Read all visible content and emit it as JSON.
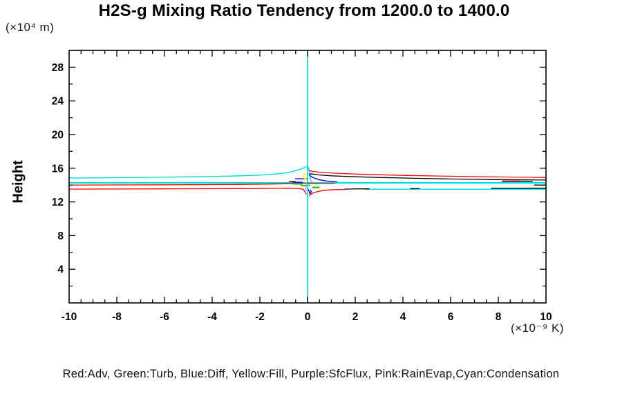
{
  "title": "H2S-g Mixing Ratio Tendency from 1200.0 to 1400.0",
  "y_unit_label": "(×10⁴ m)",
  "x_unit_label": "(×10⁻⁹ K)",
  "y_axis_label": "Height",
  "legend_text": "Red:Adv, Green:Turb, Blue:Diff, Yellow:Fill, Purple:SfcFlux, Pink:RainEvap,Cyan:Condensation",
  "colors": {
    "red": "#ff0000",
    "green": "#00c800",
    "blue": "#0000ff",
    "yellow": "#ffff00",
    "purple": "#c09ae0",
    "pink": "#ff9ad5",
    "cyan": "#00dede",
    "black": "#000000",
    "dark_red": "#990000",
    "frame": "#000000"
  },
  "chart_data": {
    "type": "line",
    "title": "H2S-g Mixing Ratio Tendency from 1200.0 to 1400.0",
    "xlabel": "(×10⁻⁹ K)",
    "ylabel": "Height (×10⁴ m)",
    "xlim": [
      -10,
      10
    ],
    "ylim": [
      0,
      30
    ],
    "x_tick_values": [
      -10,
      -8,
      -6,
      -4,
      -2,
      0,
      2,
      4,
      6,
      8,
      10
    ],
    "x_tick_labels": [
      "-10",
      "-8",
      "-6",
      "-4",
      "-2",
      "0",
      "2",
      "4",
      "6",
      "8",
      "10"
    ],
    "x_minor_step": 0.5,
    "y_tick_values": [
      4,
      8,
      12,
      16,
      20,
      24,
      28
    ],
    "y_tick_labels": [
      "4",
      "8",
      "12",
      "16",
      "20",
      "24",
      "28"
    ],
    "y_minor_step": 2,
    "grid": false,
    "frame_ticks_all_sides": true,
    "legend_position": "bottom",
    "series": [
      {
        "name": "condensation-zero-line",
        "color": "cyan",
        "width": 1.7,
        "points": [
          [
            0,
            0
          ],
          [
            0,
            30
          ]
        ]
      },
      {
        "name": "condensation-upper-curve",
        "color": "cyan",
        "width": 1.4,
        "points": [
          [
            -10,
            14.84
          ],
          [
            -8,
            14.88
          ],
          [
            -6,
            14.94
          ],
          [
            -4,
            15.02
          ],
          [
            -3,
            15.08
          ],
          [
            -2,
            15.18
          ],
          [
            -1.5,
            15.27
          ],
          [
            -1,
            15.42
          ],
          [
            -0.6,
            15.62
          ],
          [
            -0.3,
            15.88
          ],
          [
            -0.12,
            16.1
          ],
          [
            0,
            16.3
          ],
          [
            0.06,
            15.8
          ],
          [
            0.1,
            15.2
          ],
          [
            0.14,
            14.5
          ],
          [
            0.16,
            14.3
          ]
        ]
      },
      {
        "name": "condensation-flat-upper",
        "color": "cyan",
        "width": 2.3,
        "points": [
          [
            -10,
            14.26
          ],
          [
            10,
            14.26
          ]
        ]
      },
      {
        "name": "condensation-flat-lower",
        "color": "cyan",
        "width": 1.6,
        "points": [
          [
            2.4,
            13.5
          ],
          [
            10,
            13.5
          ]
        ]
      },
      {
        "name": "adv-upper-right",
        "color": "red",
        "width": 1.3,
        "points": [
          [
            0.05,
            15.72
          ],
          [
            0.3,
            15.58
          ],
          [
            0.7,
            15.48
          ],
          [
            1.5,
            15.36
          ],
          [
            2.5,
            15.26
          ],
          [
            4,
            15.15
          ],
          [
            5.5,
            15.07
          ],
          [
            7,
            15.0
          ],
          [
            8.5,
            14.95
          ],
          [
            10,
            14.9
          ]
        ]
      },
      {
        "name": "total-upper-right",
        "color": "black",
        "width": 1.3,
        "points": [
          [
            0.1,
            15.35
          ],
          [
            0.5,
            15.2
          ],
          [
            1,
            15.1
          ],
          [
            2,
            14.98
          ],
          [
            3,
            14.9
          ],
          [
            4.5,
            14.8
          ],
          [
            6,
            14.72
          ],
          [
            8,
            14.65
          ],
          [
            10,
            14.6
          ]
        ]
      },
      {
        "name": "adv-mid-left",
        "color": "red",
        "width": 1.3,
        "points": [
          [
            -10,
            14.0
          ],
          [
            -6,
            14.03
          ],
          [
            -3,
            14.07
          ],
          [
            -1.5,
            14.12
          ],
          [
            -0.8,
            14.16
          ],
          [
            -0.3,
            14.2
          ],
          [
            0.2,
            14.2
          ],
          [
            0.7,
            14.19
          ],
          [
            1.15,
            14.19
          ]
        ]
      },
      {
        "name": "adv-lower-left",
        "color": "red",
        "width": 1.3,
        "points": [
          [
            -10,
            13.52
          ],
          [
            -6,
            13.55
          ],
          [
            -3,
            13.58
          ],
          [
            -1.5,
            13.61
          ],
          [
            -0.8,
            13.63
          ],
          [
            -0.4,
            13.6
          ],
          [
            -0.18,
            13.48
          ],
          [
            -0.1,
            13.15
          ],
          [
            -0.05,
            12.88
          ]
        ]
      },
      {
        "name": "adv-lower-right",
        "color": "red",
        "width": 1.3,
        "points": [
          [
            0.07,
            12.7
          ],
          [
            0.15,
            12.95
          ],
          [
            0.3,
            13.15
          ],
          [
            0.55,
            13.3
          ],
          [
            0.85,
            13.42
          ],
          [
            1.2,
            13.46
          ],
          [
            1.55,
            13.48
          ]
        ]
      },
      {
        "name": "total-lower-right",
        "color": "black",
        "width": 1.3,
        "points": [
          [
            1.55,
            13.52
          ],
          [
            2.1,
            13.55
          ],
          [
            2.6,
            13.55
          ]
        ]
      },
      {
        "name": "total-dash-far-right",
        "color": "black",
        "width": 1.3,
        "points": [
          [
            7.7,
            13.62
          ],
          [
            10,
            13.62
          ]
        ]
      },
      {
        "name": "total-dash-mid",
        "color": "black",
        "width": 1.3,
        "points": [
          [
            4.3,
            13.58
          ],
          [
            4.7,
            13.58
          ]
        ]
      },
      {
        "name": "total-dash-edge",
        "color": "black",
        "width": 1.3,
        "points": [
          [
            9.5,
            14.0
          ],
          [
            10,
            14.0
          ]
        ]
      },
      {
        "name": "dark-red-segment",
        "color": "dark_red",
        "width": 2.0,
        "points": [
          [
            8.15,
            14.45
          ],
          [
            8.9,
            14.45
          ]
        ]
      },
      {
        "name": "black-after-dark-segment",
        "color": "black",
        "width": 1.3,
        "points": [
          [
            8.9,
            14.45
          ],
          [
            9.45,
            14.45
          ]
        ]
      },
      {
        "name": "diff-left-1",
        "color": "blue",
        "width": 1.4,
        "points": [
          [
            -0.52,
            14.75
          ],
          [
            0,
            14.75
          ]
        ]
      },
      {
        "name": "diff-left-2",
        "color": "blue",
        "width": 1.4,
        "points": [
          [
            -0.64,
            14.34
          ],
          [
            -0.2,
            14.34
          ]
        ]
      },
      {
        "name": "diff-right",
        "color": "blue",
        "width": 1.4,
        "points": [
          [
            0.05,
            15.3
          ],
          [
            0.15,
            15.0
          ],
          [
            0.3,
            14.8
          ],
          [
            0.5,
            14.62
          ],
          [
            0.8,
            14.48
          ],
          [
            1.1,
            14.4
          ],
          [
            1.25,
            14.38
          ]
        ]
      },
      {
        "name": "diff-down-spike",
        "color": "blue",
        "width": 1.4,
        "points": [
          [
            0.02,
            13.5
          ],
          [
            0.07,
            13.25
          ],
          [
            0.1,
            12.95
          ],
          [
            0.16,
            13.2
          ],
          [
            0.12,
            13.45
          ]
        ]
      },
      {
        "name": "turb-left",
        "color": "green",
        "width": 1.7,
        "points": [
          [
            -0.6,
            14.12
          ],
          [
            -0.26,
            14.12
          ],
          [
            -0.26,
            13.94
          ],
          [
            -0.02,
            13.94
          ]
        ]
      },
      {
        "name": "turb-right",
        "color": "green",
        "width": 2.2,
        "points": [
          [
            0.2,
            13.72
          ],
          [
            0.5,
            13.72
          ]
        ]
      },
      {
        "name": "turb-right-2",
        "color": "green",
        "width": 1.7,
        "points": [
          [
            0.0,
            13.97
          ],
          [
            0.12,
            13.97
          ]
        ]
      },
      {
        "name": "fill-squiggle",
        "color": "yellow",
        "width": 1.6,
        "points": [
          [
            -0.08,
            15.4
          ],
          [
            -0.18,
            15.15
          ],
          [
            -0.2,
            14.95
          ],
          [
            -0.12,
            14.78
          ],
          [
            -0.04,
            14.68
          ],
          [
            -0.14,
            14.52
          ]
        ]
      },
      {
        "name": "sfcflux-vertical",
        "color": "purple",
        "width": 1.6,
        "points": [
          [
            -0.07,
            14.3
          ],
          [
            -0.07,
            13.32
          ]
        ]
      },
      {
        "name": "black-left-dash",
        "color": "black",
        "width": 1.3,
        "points": [
          [
            -0.78,
            14.42
          ],
          [
            -0.5,
            14.42
          ]
        ]
      }
    ]
  }
}
